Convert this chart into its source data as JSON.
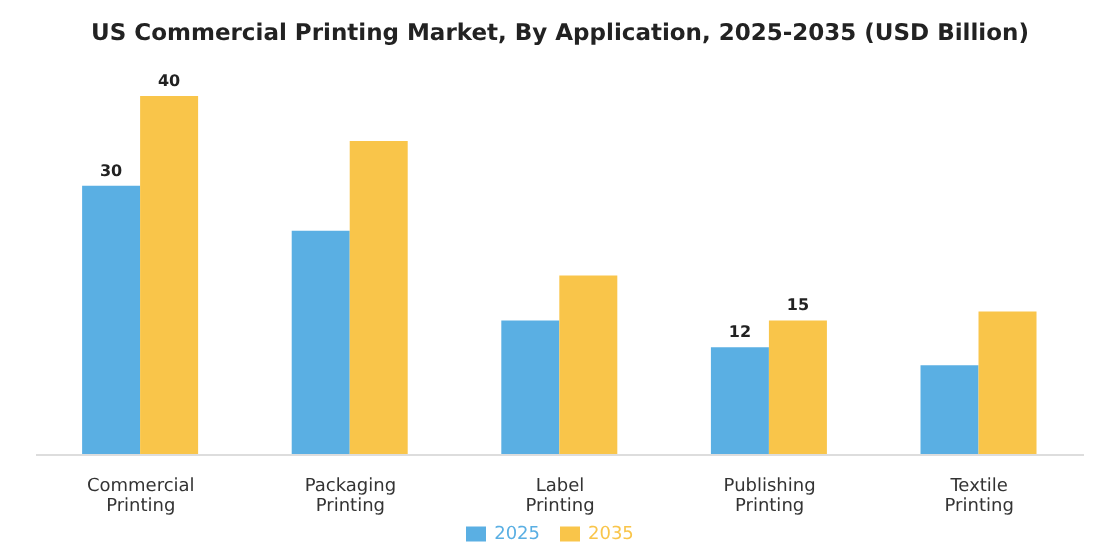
{
  "chart_data": {
    "type": "bar",
    "title": "US Commercial Printing Market, By Application, 2025-2035 (USD Billion)",
    "categories": [
      "Commercial Printing",
      "Packaging Printing",
      "Label Printing",
      "Publishing Printing",
      "Textile Printing"
    ],
    "series": [
      {
        "name": "2025",
        "color": "#5aafe3",
        "values": [
          30,
          25,
          15,
          12,
          10
        ],
        "value_labels": [
          "30",
          null,
          null,
          "12",
          null
        ]
      },
      {
        "name": "2035",
        "color": "#f9c54a",
        "values": [
          40,
          35,
          20,
          15,
          16
        ],
        "value_labels": [
          "40",
          null,
          null,
          "15",
          null
        ]
      }
    ],
    "legend": "bottom",
    "grid": false
  }
}
